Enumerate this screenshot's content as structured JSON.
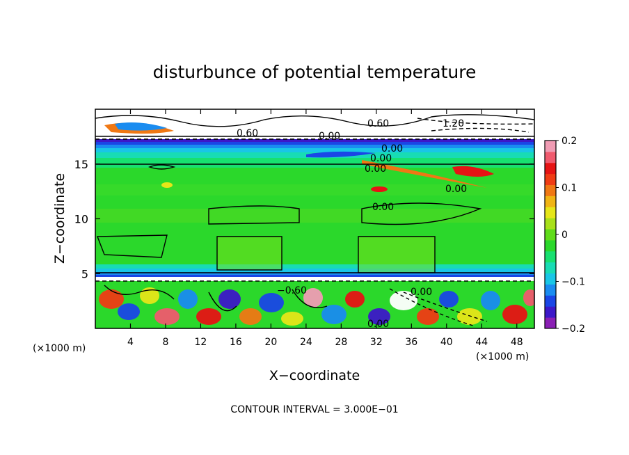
{
  "chart_data": {
    "type": "heatmap",
    "title": "disturbunce of potential temperature",
    "xlabel": "X−coordinate",
    "ylabel": "Z−coordinate",
    "x_unit_left": "(×1000 m)",
    "x_unit_right": "(×1000 m)",
    "xlim": [
      0,
      50
    ],
    "ylim": [
      0,
      20
    ],
    "x_ticks": [
      4,
      8,
      12,
      16,
      20,
      24,
      28,
      32,
      36,
      40,
      44,
      48
    ],
    "y_ticks": [
      5,
      10,
      15
    ],
    "colorbar": {
      "range": [
        -0.2,
        0.2
      ],
      "ticks": [
        {
          "value": 0.2,
          "label": "0.2"
        },
        {
          "value": 0.1,
          "label": "0.1"
        },
        {
          "value": 0.0,
          "label": "0"
        },
        {
          "value": -0.1,
          "label": "−0.1"
        },
        {
          "value": -0.2,
          "label": "−0.2"
        }
      ],
      "colors": [
        "#8a1fb4",
        "#3c18c8",
        "#1a46e6",
        "#1a8cf0",
        "#19c6e6",
        "#18dcb4",
        "#18e070",
        "#2bd82b",
        "#60dc1a",
        "#a8e01a",
        "#e6e619",
        "#f0b414",
        "#f07814",
        "#f03c14",
        "#e61414",
        "#f05a6e",
        "#f09cb4"
      ]
    },
    "contour_interval_text": "CONTOUR INTERVAL = 3.000E−01",
    "contour_labels": [
      "0.60",
      "0.60",
      "0.00",
      "1.20",
      "0.00",
      "0.00",
      "0.00",
      "0.00",
      "0.00",
      "−0.60",
      "0.00",
      "0.00"
    ]
  }
}
